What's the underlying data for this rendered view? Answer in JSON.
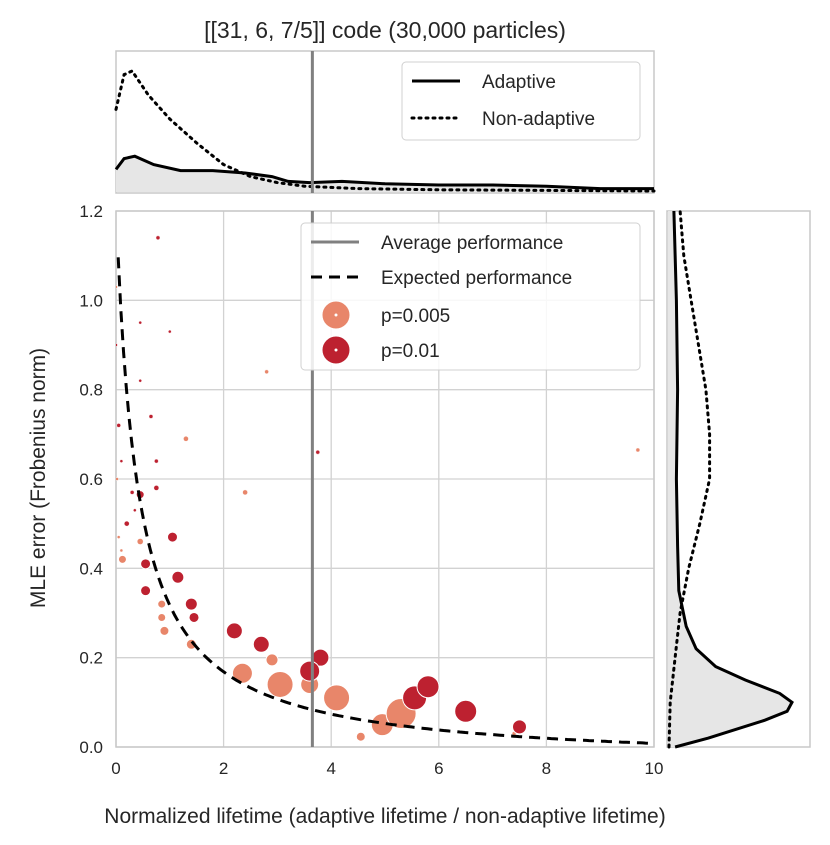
{
  "chart_data": {
    "type": "scatter",
    "title": "[[31, 6, 7/5]] code (30,000 particles)",
    "xlabel": "Normalized lifetime (adaptive lifetime / non-adaptive lifetime)",
    "ylabel": "MLE error (Frobenius norm)",
    "xlim": [
      0,
      10
    ],
    "ylim": [
      0,
      1.2
    ],
    "x_ticks": [
      "0",
      "2",
      "4",
      "6",
      "8",
      "10"
    ],
    "y_ticks": [
      "0.0",
      "0.2",
      "0.4",
      "0.6",
      "0.8",
      "1.0",
      "1.2"
    ],
    "x_tick_values": [
      0,
      2,
      4,
      6,
      8,
      10
    ],
    "y_tick_values": [
      0,
      0.2,
      0.4,
      0.6,
      0.8,
      1.0,
      1.2
    ],
    "grid": true,
    "average_performance_x": 3.65,
    "expected_curve_label": "Expected performance",
    "average_line_label": "Average performance",
    "colors": {
      "p0005": "#e8866a",
      "p001": "#bd2130",
      "average": "#808080",
      "expected": "#000000",
      "fill": "#e6e6e6",
      "grid": "#d2d2d2",
      "frame": "#c8c8c8"
    },
    "series": [
      {
        "name": "p=0.005",
        "color_key": "p0005",
        "points": [
          {
            "x": 0.0,
            "y": 1.03,
            "s": 1.5
          },
          {
            "x": 0.02,
            "y": 0.6,
            "s": 1.5
          },
          {
            "x": 0.05,
            "y": 0.47,
            "s": 1.5
          },
          {
            "x": 0.1,
            "y": 0.44,
            "s": 1.5
          },
          {
            "x": 0.12,
            "y": 0.42,
            "s": 4
          },
          {
            "x": 0.45,
            "y": 0.46,
            "s": 3
          },
          {
            "x": 0.85,
            "y": 0.32,
            "s": 4
          },
          {
            "x": 0.85,
            "y": 0.29,
            "s": 4
          },
          {
            "x": 0.9,
            "y": 0.26,
            "s": 4.5
          },
          {
            "x": 1.3,
            "y": 0.69,
            "s": 2.5
          },
          {
            "x": 1.4,
            "y": 0.23,
            "s": 5
          },
          {
            "x": 2.4,
            "y": 0.57,
            "s": 2.5
          },
          {
            "x": 2.8,
            "y": 0.84,
            "s": 2
          },
          {
            "x": 2.35,
            "y": 0.165,
            "s": 10
          },
          {
            "x": 2.9,
            "y": 0.195,
            "s": 6
          },
          {
            "x": 3.05,
            "y": 0.14,
            "s": 13
          },
          {
            "x": 3.6,
            "y": 0.14,
            "s": 9
          },
          {
            "x": 4.1,
            "y": 0.11,
            "s": 13
          },
          {
            "x": 4.55,
            "y": 0.023,
            "s": 4.5
          },
          {
            "x": 4.95,
            "y": 0.05,
            "s": 11
          },
          {
            "x": 5.3,
            "y": 0.075,
            "s": 15
          },
          {
            "x": 7.4,
            "y": 0.03,
            "s": 2
          },
          {
            "x": 9.7,
            "y": 0.665,
            "s": 2
          }
        ]
      },
      {
        "name": "p=0.01",
        "color_key": "p001",
        "points": [
          {
            "x": 0.0,
            "y": 0.9,
            "s": 1.5
          },
          {
            "x": 0.05,
            "y": 0.72,
            "s": 2
          },
          {
            "x": 0.1,
            "y": 0.64,
            "s": 1.5
          },
          {
            "x": 0.2,
            "y": 0.5,
            "s": 2.5
          },
          {
            "x": 0.3,
            "y": 0.57,
            "s": 2
          },
          {
            "x": 0.35,
            "y": 0.53,
            "s": 1.5
          },
          {
            "x": 0.45,
            "y": 0.82,
            "s": 1.5
          },
          {
            "x": 0.45,
            "y": 0.95,
            "s": 1.5
          },
          {
            "x": 0.45,
            "y": 0.565,
            "s": 4
          },
          {
            "x": 0.55,
            "y": 0.41,
            "s": 5
          },
          {
            "x": 0.55,
            "y": 0.35,
            "s": 5
          },
          {
            "x": 0.65,
            "y": 0.74,
            "s": 2
          },
          {
            "x": 0.75,
            "y": 0.58,
            "s": 2.5
          },
          {
            "x": 0.75,
            "y": 0.64,
            "s": 2
          },
          {
            "x": 0.78,
            "y": 1.14,
            "s": 2
          },
          {
            "x": 1.0,
            "y": 0.93,
            "s": 1.5
          },
          {
            "x": 1.05,
            "y": 0.47,
            "s": 5
          },
          {
            "x": 1.15,
            "y": 0.38,
            "s": 6
          },
          {
            "x": 1.4,
            "y": 0.32,
            "s": 6
          },
          {
            "x": 1.45,
            "y": 0.29,
            "s": 5
          },
          {
            "x": 2.2,
            "y": 0.26,
            "s": 8
          },
          {
            "x": 2.7,
            "y": 0.23,
            "s": 8
          },
          {
            "x": 3.75,
            "y": 0.66,
            "s": 2
          },
          {
            "x": 3.8,
            "y": 0.2,
            "s": 8.5
          },
          {
            "x": 3.6,
            "y": 0.17,
            "s": 10
          },
          {
            "x": 5.55,
            "y": 0.11,
            "s": 12
          },
          {
            "x": 5.8,
            "y": 0.135,
            "s": 11
          },
          {
            "x": 6.5,
            "y": 0.08,
            "s": 11
          },
          {
            "x": 7.5,
            "y": 0.045,
            "s": 7
          }
        ]
      }
    ],
    "top_marginal": {
      "legend": [
        "Adaptive",
        "Non-adaptive"
      ],
      "adaptive_density": [
        [
          0,
          0.18
        ],
        [
          0.15,
          0.27
        ],
        [
          0.35,
          0.29
        ],
        [
          0.7,
          0.22
        ],
        [
          1.2,
          0.17
        ],
        [
          1.8,
          0.17
        ],
        [
          2.4,
          0.15
        ],
        [
          2.9,
          0.12
        ],
        [
          3.2,
          0.08
        ],
        [
          3.6,
          0.07
        ],
        [
          4.2,
          0.08
        ],
        [
          5.0,
          0.06
        ],
        [
          6.0,
          0.05
        ],
        [
          7.0,
          0.05
        ],
        [
          8.0,
          0.04
        ],
        [
          9.0,
          0.02
        ],
        [
          10,
          0.02
        ]
      ],
      "nonadaptive_density": [
        [
          0,
          0.68
        ],
        [
          0.15,
          0.97
        ],
        [
          0.3,
          1.0
        ],
        [
          0.6,
          0.8
        ],
        [
          1.0,
          0.6
        ],
        [
          1.5,
          0.4
        ],
        [
          2.0,
          0.22
        ],
        [
          2.5,
          0.12
        ],
        [
          3.0,
          0.07
        ],
        [
          3.5,
          0.04
        ],
        [
          4.5,
          0.02
        ],
        [
          6.0,
          0.01
        ],
        [
          10,
          0.0
        ]
      ]
    },
    "right_marginal": {
      "adaptive_density": [
        [
          0,
          0.05
        ],
        [
          0.02,
          0.32
        ],
        [
          0.06,
          0.78
        ],
        [
          0.08,
          0.96
        ],
        [
          0.1,
          1.0
        ],
        [
          0.12,
          0.9
        ],
        [
          0.15,
          0.62
        ],
        [
          0.18,
          0.38
        ],
        [
          0.22,
          0.22
        ],
        [
          0.27,
          0.14
        ],
        [
          0.35,
          0.08
        ],
        [
          0.45,
          0.07
        ],
        [
          0.6,
          0.06
        ],
        [
          0.8,
          0.07
        ],
        [
          1.0,
          0.06
        ],
        [
          1.2,
          0.04
        ]
      ],
      "nonadaptive_density": [
        [
          0,
          0.0
        ],
        [
          0.1,
          0.01
        ],
        [
          0.2,
          0.05
        ],
        [
          0.3,
          0.09
        ],
        [
          0.4,
          0.16
        ],
        [
          0.5,
          0.25
        ],
        [
          0.6,
          0.33
        ],
        [
          0.7,
          0.33
        ],
        [
          0.8,
          0.3
        ],
        [
          0.9,
          0.24
        ],
        [
          1.0,
          0.18
        ],
        [
          1.1,
          0.12
        ],
        [
          1.2,
          0.09
        ]
      ]
    },
    "legend": {
      "average": "Average performance",
      "expected": "Expected performance",
      "p0005": "p=0.005",
      "p001": "p=0.01"
    }
  }
}
